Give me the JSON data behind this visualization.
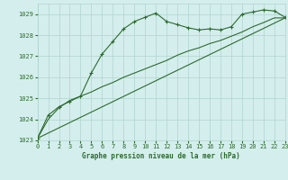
{
  "title": "Graphe pression niveau de la mer (hPa)",
  "bg_color": "#d4eeed",
  "grid_color": "#b0d4d0",
  "line_color": "#2d6b2d",
  "x_min": 0,
  "x_max": 23,
  "y_min": 1023,
  "y_max": 1029.5,
  "yticks": [
    1023,
    1024,
    1025,
    1026,
    1027,
    1028,
    1029
  ],
  "xticks": [
    0,
    1,
    2,
    3,
    4,
    5,
    6,
    7,
    8,
    9,
    10,
    11,
    12,
    13,
    14,
    15,
    16,
    17,
    18,
    19,
    20,
    21,
    22,
    23
  ],
  "series1_x": [
    0,
    1,
    2,
    3,
    4,
    5,
    6,
    7,
    8,
    9,
    10,
    11,
    12,
    13,
    14,
    15,
    16,
    17,
    18,
    19,
    20,
    21,
    22,
    23
  ],
  "series1_y": [
    1023.1,
    1024.2,
    1024.6,
    1024.85,
    1025.1,
    1026.2,
    1027.1,
    1027.7,
    1028.3,
    1028.65,
    1028.85,
    1029.05,
    1028.65,
    1028.5,
    1028.35,
    1028.25,
    1028.3,
    1028.25,
    1028.4,
    1029.0,
    1029.1,
    1029.2,
    1029.15,
    1028.85
  ],
  "series2_x": [
    0,
    1,
    2,
    3,
    4,
    5,
    6,
    7,
    8,
    9,
    10,
    11,
    12,
    13,
    14,
    15,
    16,
    17,
    18,
    19,
    20,
    21,
    22,
    23
  ],
  "series2_y": [
    1023.1,
    1024.0,
    1024.55,
    1024.9,
    1025.1,
    1025.3,
    1025.55,
    1025.75,
    1026.0,
    1026.2,
    1026.4,
    1026.6,
    1026.8,
    1027.05,
    1027.25,
    1027.4,
    1027.6,
    1027.75,
    1027.95,
    1028.15,
    1028.4,
    1028.6,
    1028.82,
    1028.82
  ],
  "series3_x": [
    0,
    23
  ],
  "series3_y": [
    1023.1,
    1028.82
  ]
}
